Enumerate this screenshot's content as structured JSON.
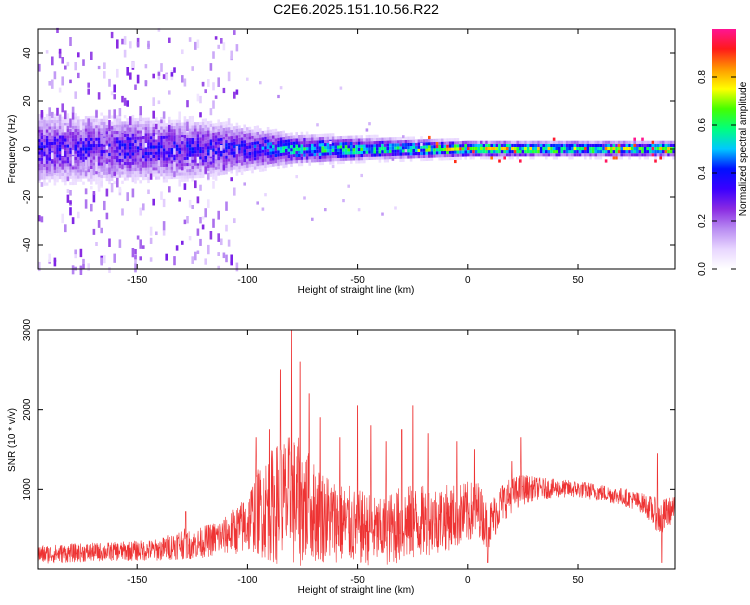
{
  "title": "C2E6.2025.151.10.56.R22",
  "chart_data": [
    {
      "type": "heatmap",
      "xlabel": "Height of straight line (km)",
      "ylabel": "Frequency (Hz)",
      "xlim": [
        -195,
        94
      ],
      "ylim": [
        -50,
        50
      ],
      "xticks": [
        -150,
        -100,
        -50,
        0,
        50
      ],
      "yticks": [
        -40,
        -20,
        0,
        20,
        40
      ],
      "colorbar": {
        "label": "Normalized spectral amplitude",
        "range": [
          0,
          1
        ],
        "ticks": [
          0,
          0.2,
          0.4,
          0.6,
          0.8
        ],
        "colors": [
          "#ffffff",
          "#e8d6ff",
          "#b98cf2",
          "#8a2be2",
          "#3b00ff",
          "#0010ff",
          "#00c8ff",
          "#00ff7f",
          "#44ff00",
          "#ffff00",
          "#ff9900",
          "#ff1a1a",
          "#ff1493"
        ]
      },
      "center_band": [
        {
          "x": -195,
          "half_width_hz": 14,
          "peak": 0.35
        },
        {
          "x": -150,
          "half_width_hz": 13,
          "peak": 0.37
        },
        {
          "x": -120,
          "half_width_hz": 12,
          "peak": 0.38
        },
        {
          "x": -100,
          "half_width_hz": 9,
          "peak": 0.4
        },
        {
          "x": -80,
          "half_width_hz": 6,
          "peak": 0.55
        },
        {
          "x": -60,
          "half_width_hz": 5,
          "peak": 0.6
        },
        {
          "x": -30,
          "half_width_hz": 4,
          "peak": 0.62
        },
        {
          "x": 0,
          "half_width_hz": 3,
          "peak": 0.85
        },
        {
          "x": 30,
          "half_width_hz": 3,
          "peak": 0.72
        },
        {
          "x": 60,
          "half_width_hz": 3,
          "peak": 0.7
        },
        {
          "x": 94,
          "half_width_hz": 3,
          "peak": 0.72
        }
      ],
      "scatter_extent": {
        "x_from": -195,
        "x_to": -105,
        "freq_range": [
          -50,
          50
        ]
      }
    },
    {
      "type": "line",
      "xlabel": "Height of straight line (km)",
      "ylabel": "SNR (10 * v/v)",
      "xlim": [
        -195,
        94
      ],
      "ylim": [
        0,
        3000
      ],
      "xticks": [
        -150,
        -100,
        -50,
        0,
        50
      ],
      "yticks": [
        1000,
        2000,
        3000
      ],
      "line_color": "#ee3333",
      "series": [
        {
          "x": [
            -195,
            -180,
            -160,
            -140,
            -130,
            -125,
            -120,
            -110,
            -100,
            -97,
            -90,
            -85,
            -80,
            -75,
            -70,
            -60,
            -50,
            -45,
            -40,
            -30,
            -20,
            -10,
            0,
            5,
            9,
            10,
            15,
            20,
            25,
            30,
            40,
            50,
            60,
            70,
            80,
            85,
            88,
            90,
            94
          ],
          "baseline": [
            180,
            200,
            220,
            240,
            320,
            300,
            340,
            420,
            560,
            700,
            780,
            850,
            850,
            820,
            720,
            600,
            520,
            500,
            460,
            560,
            600,
            640,
            700,
            760,
            520,
            560,
            820,
            930,
            1000,
            1010,
            1010,
            1000,
            960,
            910,
            820,
            700,
            620,
            700,
            760
          ],
          "noise": [
            120,
            120,
            120,
            140,
            200,
            180,
            200,
            240,
            380,
            500,
            700,
            800,
            850,
            800,
            650,
            520,
            480,
            460,
            420,
            500,
            450,
            420,
            400,
            350,
            300,
            300,
            260,
            220,
            200,
            150,
            120,
            110,
            110,
            110,
            130,
            200,
            250,
            200,
            150
          ],
          "spikes": [
            [
              -128,
              720
            ],
            [
              -96,
              1650
            ],
            [
              -90,
              1750
            ],
            [
              -85,
              2500
            ],
            [
              -80,
              3000
            ],
            [
              -76,
              2600
            ],
            [
              -72,
              2200
            ],
            [
              -67,
              1900
            ],
            [
              -58,
              1650
            ],
            [
              -50,
              2050
            ],
            [
              -44,
              1800
            ],
            [
              -37,
              1600
            ],
            [
              -30,
              1750
            ],
            [
              -25,
              2050
            ],
            [
              -18,
              1700
            ],
            [
              -5,
              1600
            ],
            [
              3,
              1500
            ],
            [
              9,
              80
            ],
            [
              20,
              1350
            ],
            [
              24,
              1650
            ],
            [
              86,
              1450
            ],
            [
              88,
              80
            ]
          ]
        }
      ]
    }
  ]
}
